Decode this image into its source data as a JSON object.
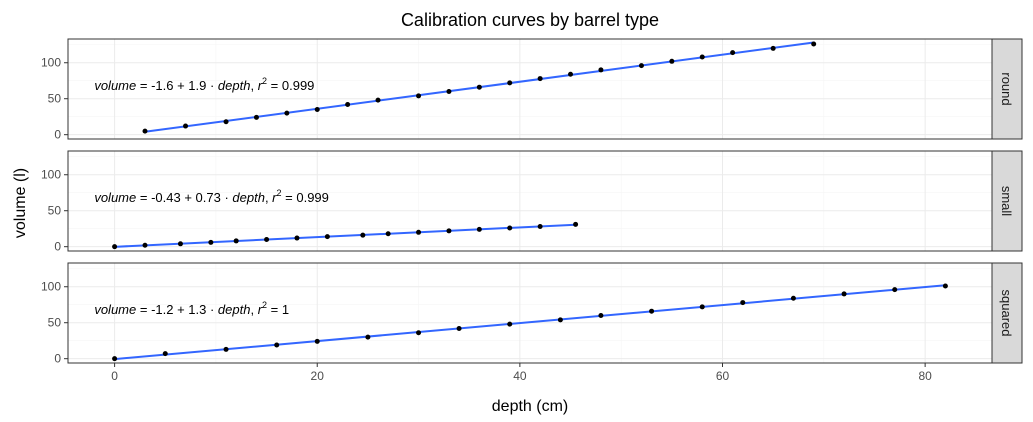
{
  "chart_data": {
    "type": "scatter",
    "title": "Calibration curves by barrel type",
    "xlabel": "depth (cm)",
    "ylabel": "volume (l)",
    "xlim": [
      -4.6,
      86.6
    ],
    "ylim": [
      -6,
      133
    ],
    "x_ticks": [
      0,
      20,
      40,
      60,
      80
    ],
    "y_ticks": [
      0,
      50,
      100
    ],
    "grid": true,
    "colors": {
      "points": "#000000",
      "fit_line": "#3366ff",
      "strip": "#d9d9d9",
      "grid_major": "#ebebeb",
      "grid_minor": "#f5f5f5"
    },
    "panels": [
      {
        "label": "round",
        "equation": {
          "lhs": "volume",
          "op": " = ",
          "expr": "-1.6 + 1.9 · ",
          "var": "depth",
          "sep": ",  ",
          "r": "r",
          "sup": "2",
          "rhs": " = 0.999"
        },
        "x": [
          3,
          7,
          11,
          14,
          17,
          20,
          23,
          26,
          30,
          33,
          36,
          39,
          42,
          45,
          48,
          52,
          55,
          58,
          61,
          65,
          69
        ],
        "y": [
          5,
          12,
          18,
          24,
          30,
          35,
          42,
          48,
          54,
          60,
          66,
          72,
          78,
          84,
          90,
          96,
          102,
          108,
          114,
          120,
          126
        ]
      },
      {
        "label": "small",
        "equation": {
          "lhs": "volume",
          "op": " = ",
          "expr": "-0.43 + 0.73 · ",
          "var": "depth",
          "sep": ",  ",
          "r": "r",
          "sup": "2",
          "rhs": " = 0.999"
        },
        "x": [
          0,
          3,
          6.5,
          9.5,
          12,
          15,
          18,
          21,
          24.5,
          27,
          30,
          33,
          36,
          39,
          42,
          45.5
        ],
        "y": [
          0,
          2,
          4,
          6,
          8,
          10,
          12,
          14,
          16,
          18,
          20,
          22,
          24,
          26,
          28,
          31
        ]
      },
      {
        "label": "squared",
        "equation": {
          "lhs": "volume",
          "op": " = ",
          "expr": "-1.2 + 1.3 · ",
          "var": "depth",
          "sep": ",  ",
          "r": "r",
          "sup": "2",
          "rhs": " = 1"
        },
        "x": [
          0,
          5,
          11,
          16,
          20,
          25,
          30,
          34,
          39,
          44,
          48,
          53,
          58,
          62,
          67,
          72,
          77,
          82
        ],
        "y": [
          0,
          7,
          13,
          19,
          24,
          30,
          36,
          42,
          48,
          54,
          60,
          66,
          72,
          78,
          84,
          90,
          96,
          101
        ]
      }
    ]
  }
}
